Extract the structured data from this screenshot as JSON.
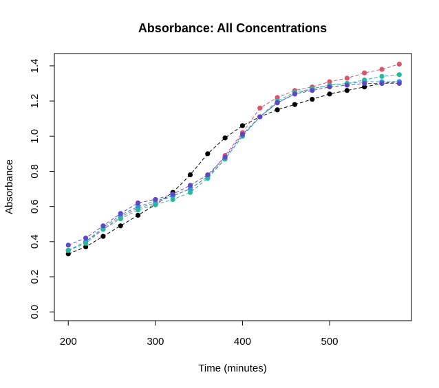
{
  "chart_data": {
    "type": "line",
    "title": "Absorbance: All Concentrations",
    "xlabel": "Time (minutes)",
    "ylabel": "Absorbance",
    "xlim": [
      184,
      594
    ],
    "ylim": [
      -0.05,
      1.47
    ],
    "xticks": [
      200,
      300,
      400,
      500
    ],
    "yticks": [
      0.0,
      0.2,
      0.4,
      0.6,
      0.8,
      1.0,
      1.2,
      1.4
    ],
    "xtick_labels": [
      "200",
      "300",
      "400",
      "500"
    ],
    "ytick_labels": [
      "0.0",
      "0.2",
      "0.4",
      "0.6",
      "0.8",
      "1.0",
      "1.2",
      "1.4"
    ],
    "grid": false,
    "x": [
      200,
      220,
      240,
      260,
      280,
      300,
      320,
      340,
      360,
      380,
      400,
      420,
      440,
      460,
      480,
      500,
      520,
      540,
      560,
      580
    ],
    "series": [
      {
        "color": "#000000",
        "line_style": "dashed",
        "values": [
          0.33,
          0.37,
          0.43,
          0.49,
          0.55,
          0.61,
          0.68,
          0.78,
          0.9,
          0.99,
          1.06,
          1.11,
          1.15,
          1.18,
          1.21,
          1.24,
          1.26,
          1.28,
          1.3,
          1.31
        ]
      },
      {
        "color": "#df536b",
        "line_style": "dashed",
        "values": [
          0.35,
          0.4,
          0.47,
          0.54,
          0.59,
          0.62,
          0.66,
          0.7,
          0.77,
          0.89,
          1.02,
          1.16,
          1.22,
          1.26,
          1.28,
          1.31,
          1.33,
          1.36,
          1.38,
          1.41
        ]
      },
      {
        "color": "#2297e6",
        "line_style": "dashed",
        "values": [
          0.35,
          0.4,
          0.48,
          0.55,
          0.6,
          0.63,
          0.66,
          0.7,
          0.77,
          0.87,
          1.0,
          1.11,
          1.19,
          1.24,
          1.27,
          1.29,
          1.3,
          1.31,
          1.31,
          1.31
        ]
      },
      {
        "color": "#28b89b",
        "line_style": "dashed",
        "values": [
          0.35,
          0.39,
          0.47,
          0.53,
          0.58,
          0.61,
          0.64,
          0.68,
          0.76,
          0.87,
          1.0,
          1.11,
          1.2,
          1.25,
          1.27,
          1.29,
          1.3,
          1.32,
          1.34,
          1.35
        ]
      },
      {
        "color": "#6247c4",
        "line_style": "dashed",
        "values": [
          0.38,
          0.42,
          0.49,
          0.56,
          0.62,
          0.64,
          0.67,
          0.72,
          0.78,
          0.88,
          1.01,
          1.11,
          1.19,
          1.24,
          1.26,
          1.28,
          1.29,
          1.3,
          1.3,
          1.3
        ]
      }
    ]
  }
}
